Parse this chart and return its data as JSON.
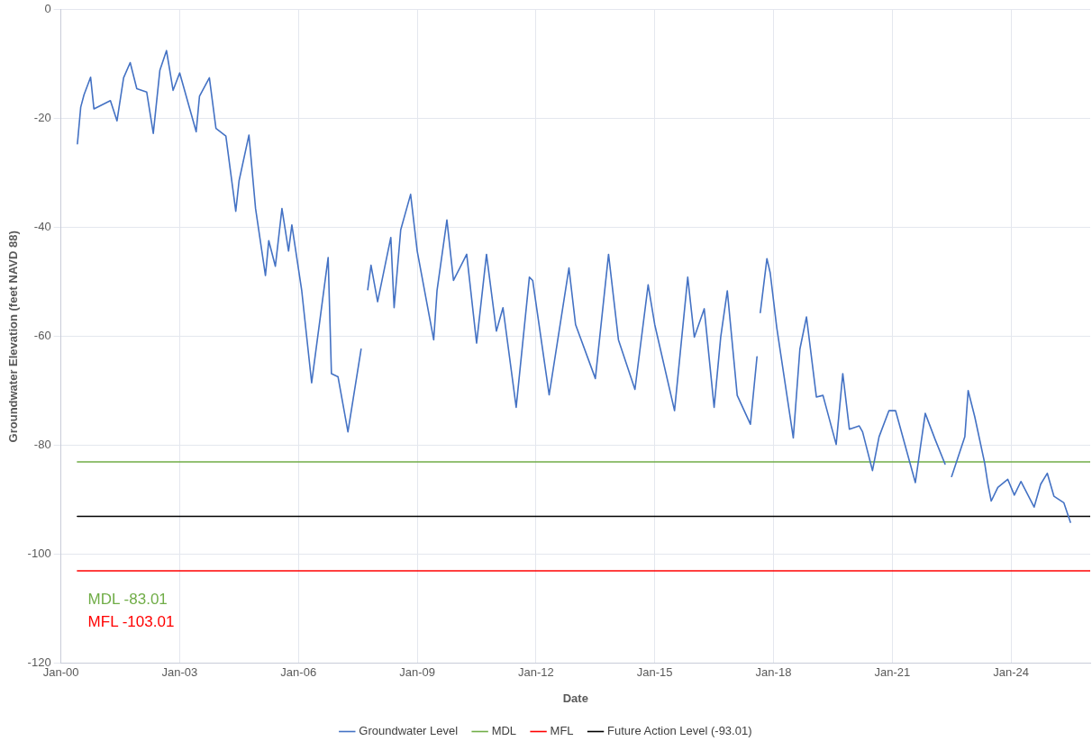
{
  "chart_data": {
    "type": "line",
    "xlabel": "Date",
    "ylabel": "Groundwater Elevation (feet NAVD 88)",
    "xlim": [
      "2000-01",
      "2026-01"
    ],
    "xticks": [
      {
        "value": "2000-01",
        "label": "Jan-00"
      },
      {
        "value": "2003-01",
        "label": "Jan-03"
      },
      {
        "value": "2006-01",
        "label": "Jan-06"
      },
      {
        "value": "2009-01",
        "label": "Jan-09"
      },
      {
        "value": "2012-01",
        "label": "Jan-12"
      },
      {
        "value": "2015-01",
        "label": "Jan-15"
      },
      {
        "value": "2018-01",
        "label": "Jan-18"
      },
      {
        "value": "2021-01",
        "label": "Jan-21"
      },
      {
        "value": "2024-01",
        "label": "Jan-24"
      }
    ],
    "ylim": [
      -120,
      0
    ],
    "yticks": [
      -120,
      -100,
      -80,
      -60,
      -40,
      -20,
      0
    ],
    "grid": true,
    "legend": "bottom",
    "marker": "none",
    "line_style": "solid",
    "annotations": [
      "MDL -83.01",
      "MFL -103.01"
    ],
    "series": [
      {
        "name": "Groundwater Level",
        "color": "#4472c4",
        "x": [
          "2000-06",
          "2000-07",
          "2000-08",
          "2000-10",
          "2000-11",
          "2001-04",
          "2001-06",
          "2001-08",
          "2001-10",
          "2001-12",
          "2002-03",
          "2002-05",
          "2002-07",
          "2002-09",
          "2002-11",
          "2003-01",
          "2003-06",
          "2003-07",
          "2003-10",
          "2003-12",
          "2004-03",
          "2004-06",
          "2004-07",
          "2004-10",
          "2004-12",
          "2005-03",
          "2005-04",
          "2005-06",
          "2005-08",
          "2005-10",
          "2005-11",
          "2006-02",
          "2006-05",
          "2006-10",
          "2006-11",
          "2007-01",
          "2007-04",
          "2007-08",
          "2007-09",
          "2007-10",
          "2007-11",
          "2008-01",
          "2008-05",
          "2008-06",
          "2008-08",
          "2008-11",
          "2009-01",
          "2009-06",
          "2009-07",
          "2009-10",
          "2009-12",
          "2010-04",
          "2010-07",
          "2010-10",
          "2011-01",
          "2011-03",
          "2011-07",
          "2011-11",
          "2011-12",
          "2012-05",
          "2012-11",
          "2013-01",
          "2013-07",
          "2013-11",
          "2014-02",
          "2014-07",
          "2014-11",
          "2015-01",
          "2015-07",
          "2015-11",
          "2016-01",
          "2016-04",
          "2016-07",
          "2016-09",
          "2016-11",
          "2017-02",
          "2017-06",
          "2017-08",
          "2017-08-20",
          "2017-09",
          "2017-11",
          "2017-12",
          "2018-02",
          "2018-07",
          "2018-09",
          "2018-11",
          "2019-02",
          "2019-04",
          "2019-08",
          "2019-10",
          "2019-12",
          "2020-03",
          "2020-04",
          "2020-07",
          "2020-09",
          "2020-12",
          "2021-02",
          "2021-08",
          "2021-11",
          "2022-02",
          "2022-05",
          "2022-06",
          "2022-07",
          "2022-11",
          "2022-12",
          "2023-02",
          "2023-05",
          "2023-06",
          "2023-07",
          "2023-09",
          "2023-12",
          "2024-02",
          "2024-04",
          "2024-08",
          "2024-10",
          "2024-12",
          "2025-02",
          "2025-05",
          "2025-07"
        ],
        "values": [
          -24.6,
          -17.9,
          -15.6,
          -12.4,
          -18.2,
          -16.7,
          -20.4,
          -12.5,
          -9.7,
          -14.5,
          -15.1,
          -22.7,
          -11.1,
          -7.5,
          -14.8,
          -11.6,
          -22.4,
          -15.9,
          -12.5,
          -21.8,
          -23.2,
          -37.0,
          -31.4,
          -23.0,
          -36.5,
          -48.8,
          -42.4,
          -47.1,
          -36.5,
          -44.3,
          -39.5,
          -51.6,
          -68.5,
          -45.5,
          -66.8,
          -67.4,
          -77.5,
          -62.3,
          null,
          -51.4,
          -46.9,
          -53.6,
          -41.8,
          -54.7,
          -40.4,
          -33.9,
          -44.3,
          -60.6,
          -51.6,
          -38.6,
          -49.7,
          -44.9,
          -61.2,
          -44.9,
          -59.0,
          -54.7,
          -73.0,
          -49.1,
          -49.7,
          -70.7,
          -47.4,
          -57.8,
          -67.7,
          -44.9,
          -60.6,
          -69.7,
          -50.5,
          -57.8,
          -73.6,
          -49.1,
          -60.1,
          -54.9,
          -73.0,
          -60.1,
          -51.6,
          -70.8,
          -76.1,
          -63.7,
          null,
          -55.6,
          -45.7,
          -48.3,
          -58.4,
          -78.6,
          -62.3,
          -56.4,
          -71.1,
          -70.8,
          -79.8,
          -66.8,
          -77.0,
          -76.4,
          -77.5,
          -84.6,
          -78.4,
          -73.6,
          -73.6,
          -86.8,
          -74.1,
          -78.9,
          -83.4,
          null,
          -85.7,
          -78.4,
          -69.9,
          -74.7,
          -83.2,
          -87.1,
          -90.2,
          -87.7,
          -86.2,
          -89.1,
          -86.6,
          -91.3,
          -87.1,
          -85.1,
          -89.3,
          -90.5,
          -94.1
        ]
      },
      {
        "name": "MDL",
        "color": "#70ad47",
        "x": [
          "2000-06",
          "2026-01"
        ],
        "values": [
          -83.01,
          -83.01
        ]
      },
      {
        "name": "MFL",
        "color": "#ff0000",
        "x": [
          "2000-06",
          "2026-01"
        ],
        "values": [
          -103.01,
          -103.01
        ]
      },
      {
        "name": "Future Action Level (-93.01)",
        "color": "#000000",
        "x": [
          "2000-06",
          "2026-01"
        ],
        "values": [
          -93.01,
          -93.01
        ]
      }
    ]
  }
}
